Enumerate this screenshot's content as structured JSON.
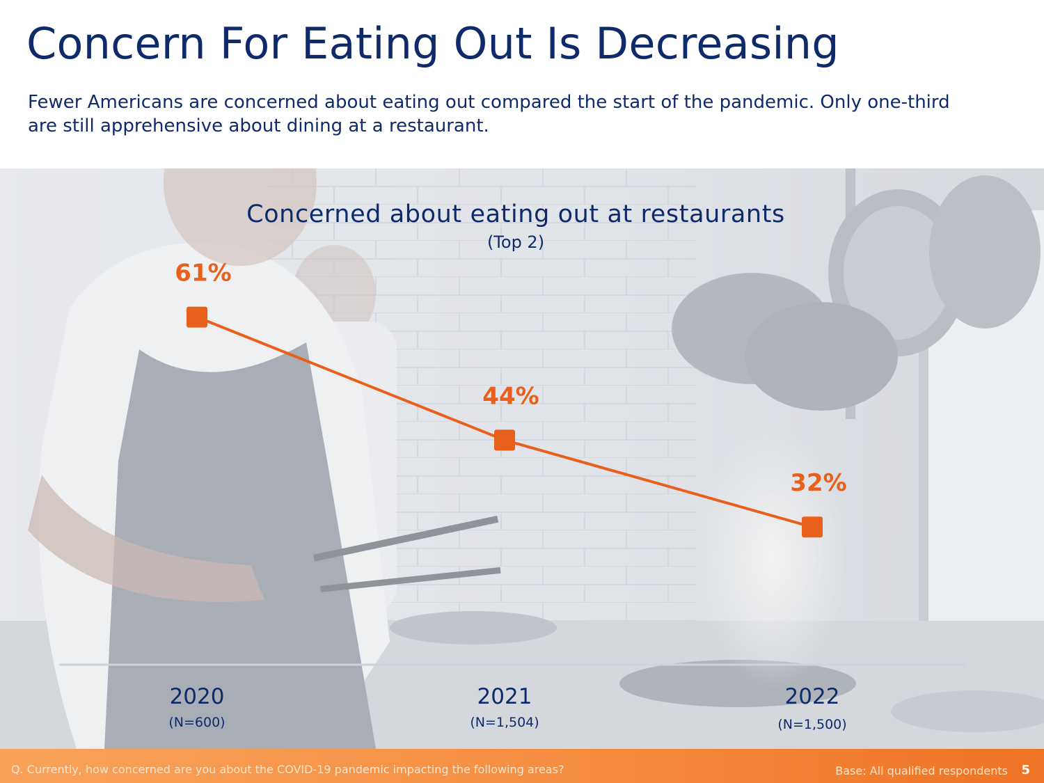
{
  "header": {
    "title": "Concern For Eating Out Is Decreasing",
    "subtitle": "Fewer Americans are concerned about eating out compared the start of the pandemic. Only one-third are still apprehensive about dining at a restaurant."
  },
  "chart_data": {
    "type": "line",
    "title": "Concerned about eating out at restaurants",
    "subtitle": "(Top 2)",
    "categories": [
      "2020",
      "2021",
      "2022"
    ],
    "sample_sizes": [
      "(N=600)",
      "(N=1,504)",
      "(N=1,500)"
    ],
    "series": [
      {
        "values": [
          61,
          44,
          32
        ],
        "labels": [
          "61%",
          "44%",
          "32%"
        ],
        "color": "#e8601c"
      }
    ],
    "xlabel": "",
    "ylabel": "",
    "ylim": [
      0,
      100
    ],
    "grid": false,
    "legend": "none"
  },
  "footer": {
    "question": "Q. Currently, how concerned are you about the COVID-19 pandemic impacting the following areas?",
    "base": "Base:  All qualified respondents",
    "page_number": "5"
  },
  "colors": {
    "title": "#0f2a6b",
    "accent": "#e8601c",
    "footer": "#f58d3f"
  },
  "background_image": "kitchen-chef-photo"
}
